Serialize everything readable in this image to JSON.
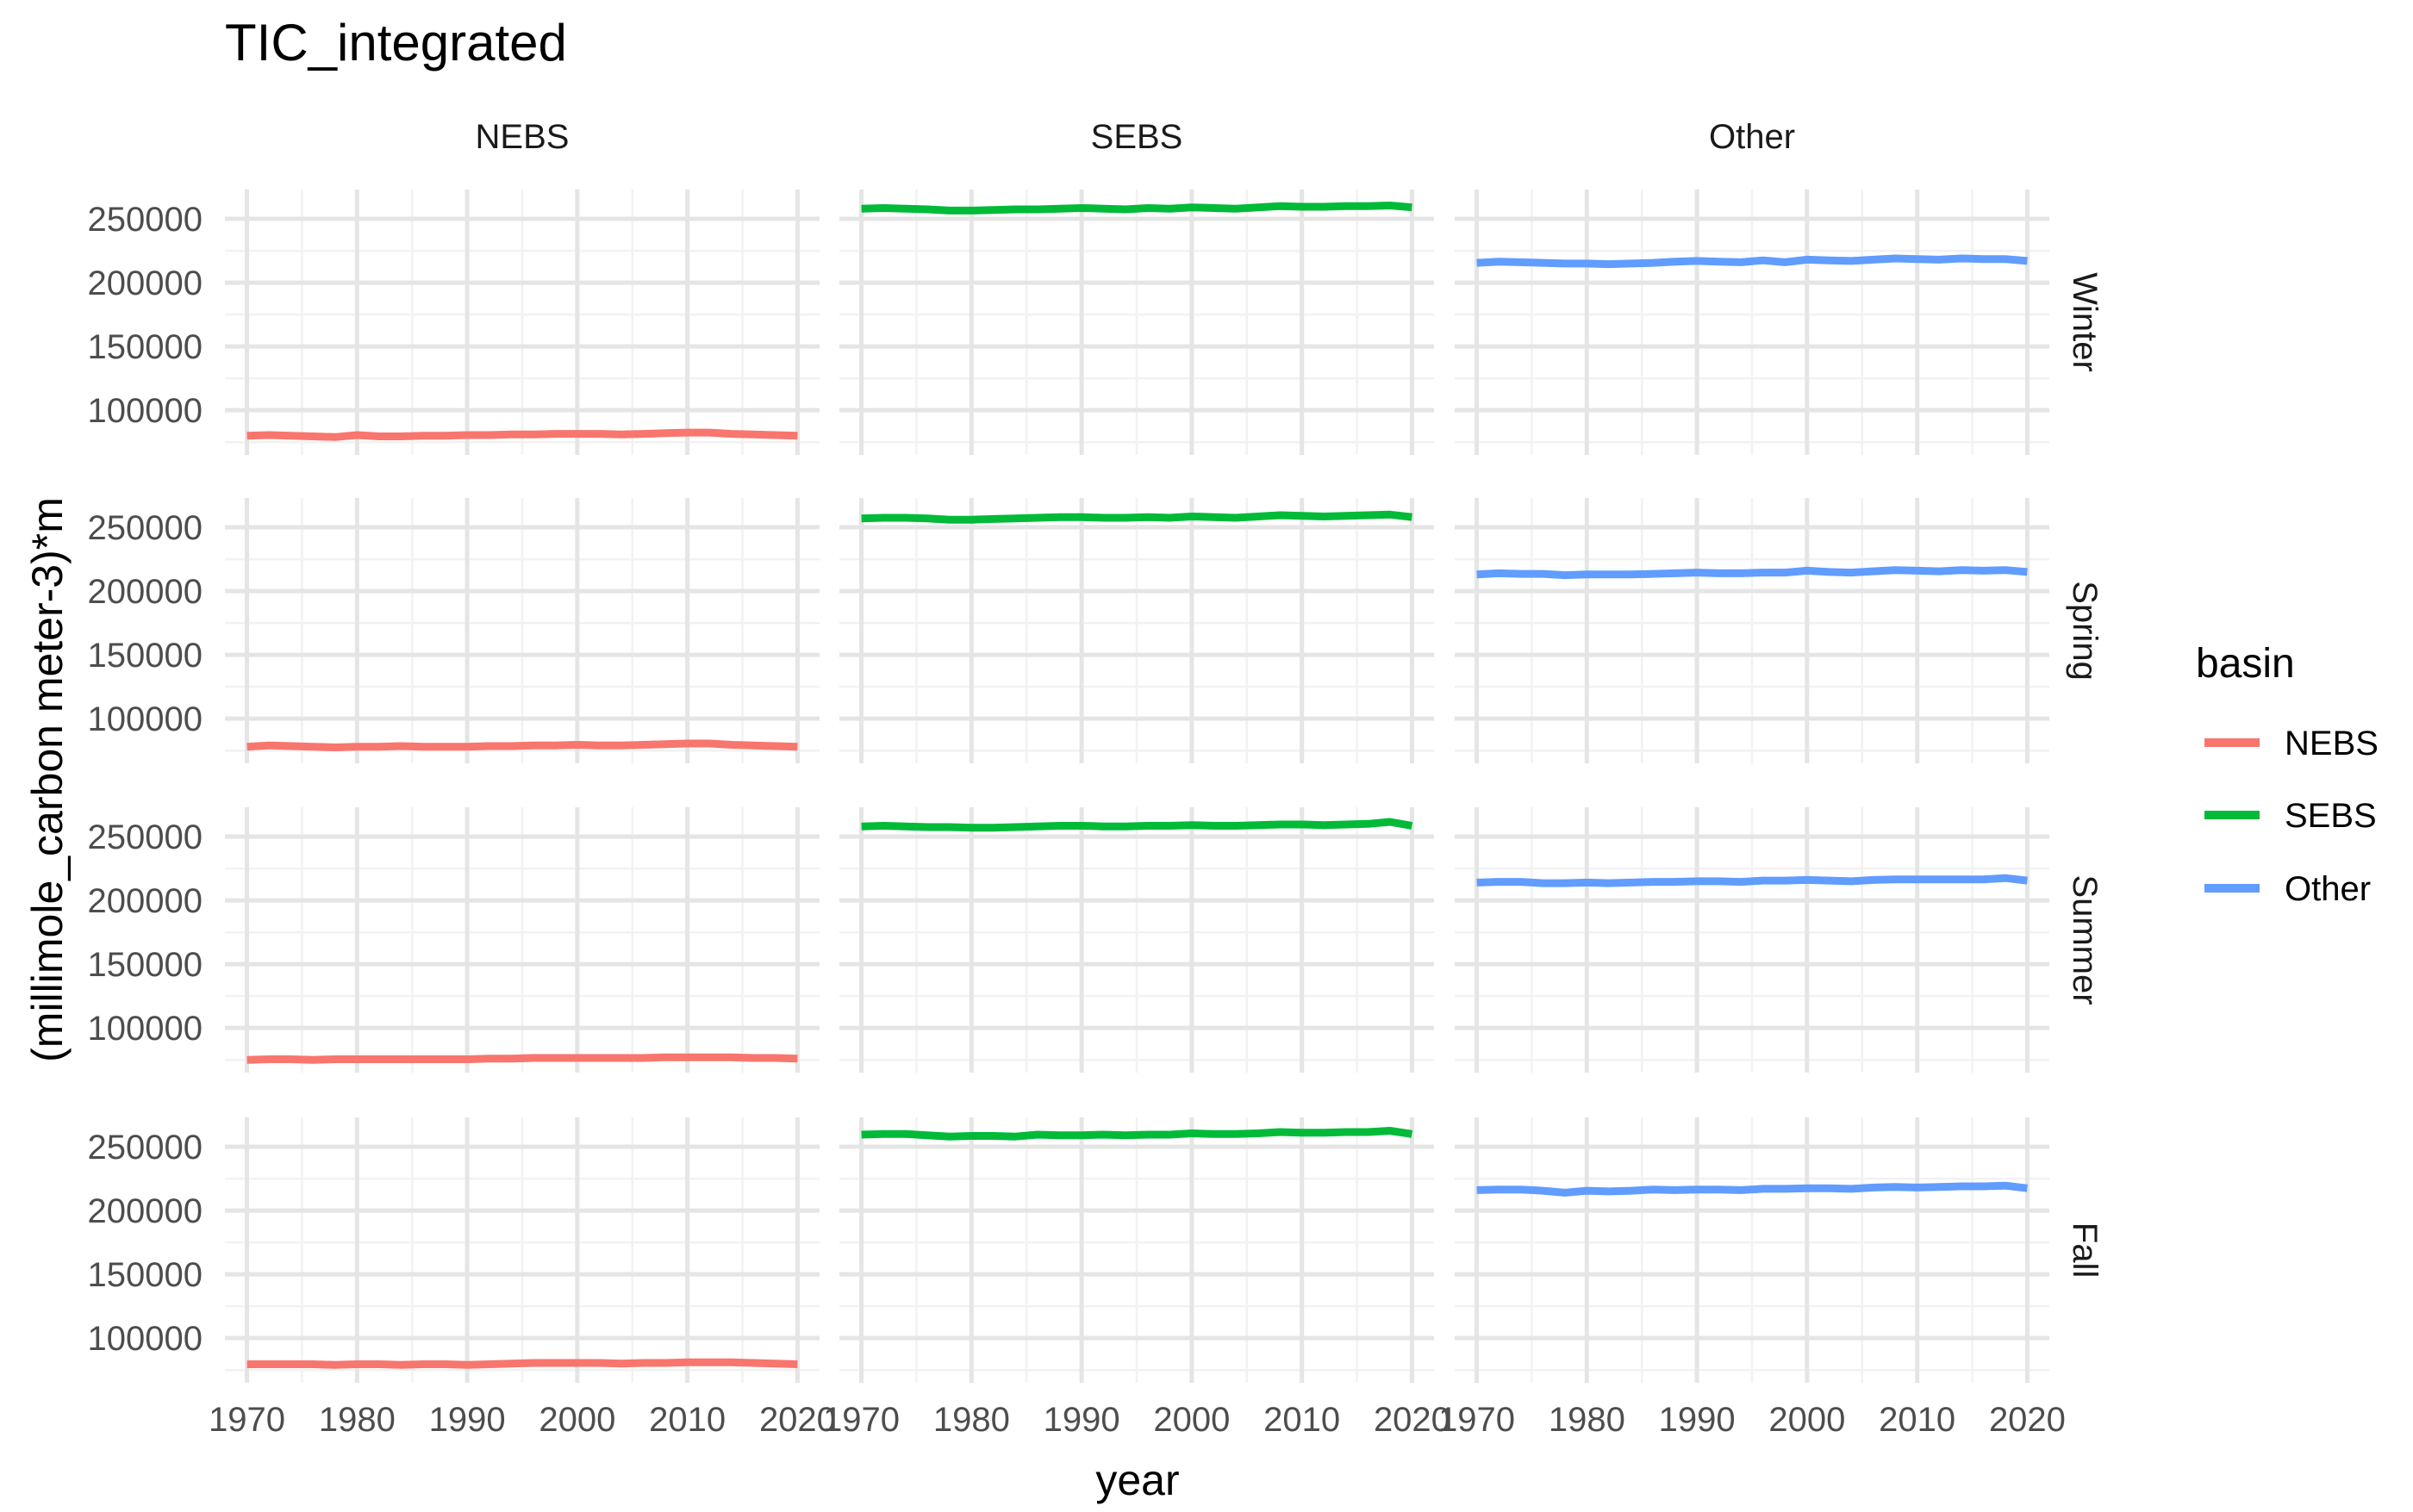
{
  "chart_data": {
    "type": "line",
    "title": "TIC_integrated",
    "xlabel": "year",
    "ylabel": "(millimole_carbon meter-3)*m",
    "columns": [
      "NEBS",
      "SEBS",
      "Other"
    ],
    "rows": [
      "Winter",
      "Spring",
      "Summer",
      "Fall"
    ],
    "xlim": [
      1968,
      2022
    ],
    "ylim": [
      65000,
      273000
    ],
    "x_ticks": [
      1970,
      1980,
      1990,
      2000,
      2010,
      2020
    ],
    "x_tick_labels": [
      "1970",
      "1980",
      "1990",
      "2000",
      "2010",
      "2020"
    ],
    "y_ticks": [
      100000,
      150000,
      200000,
      250000
    ],
    "y_tick_labels": [
      "100000",
      "150000",
      "200000",
      "250000"
    ],
    "grid": true,
    "legend": {
      "title": "basin",
      "placement": "right",
      "entries": [
        "NEBS",
        "SEBS",
        "Other"
      ]
    },
    "series_colors": {
      "NEBS": "#F8766D",
      "SEBS": "#00BA38",
      "Other": "#619CFF"
    },
    "years": [
      1970,
      1972,
      1974,
      1976,
      1978,
      1980,
      1982,
      1984,
      1986,
      1988,
      1990,
      1992,
      1994,
      1996,
      1998,
      2000,
      2002,
      2004,
      2006,
      2008,
      2010,
      2012,
      2014,
      2016,
      2018,
      2020
    ],
    "panels": [
      {
        "row": "Winter",
        "column": "NEBS",
        "values": [
          80000,
          80500,
          80000,
          79500,
          79000,
          80500,
          79500,
          79500,
          80000,
          80000,
          80500,
          80500,
          81000,
          81000,
          81500,
          81500,
          81500,
          81000,
          81500,
          82000,
          82500,
          82500,
          81500,
          81000,
          80500,
          80000
        ]
      },
      {
        "row": "Winter",
        "column": "SEBS",
        "values": [
          258000,
          258500,
          258000,
          257500,
          256500,
          256500,
          257000,
          257500,
          257500,
          258000,
          258500,
          258000,
          257500,
          258500,
          258000,
          259000,
          258500,
          258000,
          259000,
          260000,
          259500,
          259500,
          260000,
          260000,
          260500,
          259000
        ]
      },
      {
        "row": "Winter",
        "column": "Other",
        "values": [
          215500,
          216500,
          216000,
          215500,
          215000,
          215000,
          214500,
          215000,
          215500,
          216500,
          217000,
          216500,
          216000,
          217500,
          216000,
          218000,
          217500,
          217000,
          218000,
          219000,
          218500,
          218000,
          219000,
          218500,
          218500,
          217000
        ]
      },
      {
        "row": "Spring",
        "column": "NEBS",
        "values": [
          78000,
          79000,
          78500,
          78000,
          77500,
          78000,
          78000,
          78500,
          78000,
          78000,
          78000,
          78500,
          78500,
          79000,
          79000,
          79500,
          79000,
          79000,
          79500,
          80000,
          80500,
          80500,
          79500,
          79000,
          78500,
          78000
        ]
      },
      {
        "row": "Spring",
        "column": "SEBS",
        "values": [
          257000,
          257500,
          257500,
          257000,
          256000,
          256000,
          256500,
          257000,
          257500,
          258000,
          258000,
          257500,
          257500,
          258000,
          257500,
          258500,
          258000,
          257500,
          258500,
          259500,
          259000,
          258500,
          259000,
          259500,
          260000,
          258000
        ]
      },
      {
        "row": "Spring",
        "column": "Other",
        "values": [
          213000,
          214000,
          213500,
          213500,
          212500,
          213000,
          213000,
          213000,
          213500,
          214000,
          214500,
          214000,
          214000,
          214500,
          214500,
          216000,
          215000,
          214500,
          215500,
          216500,
          216000,
          215500,
          216500,
          216000,
          216500,
          215000
        ]
      },
      {
        "row": "Summer",
        "column": "NEBS",
        "values": [
          75000,
          75500,
          75500,
          75000,
          75500,
          75500,
          75500,
          75500,
          75500,
          75500,
          75500,
          76000,
          76000,
          76500,
          76500,
          76500,
          76500,
          76500,
          76500,
          77000,
          77000,
          77000,
          77000,
          76500,
          76500,
          76000
        ]
      },
      {
        "row": "Summer",
        "column": "SEBS",
        "values": [
          258000,
          258500,
          258000,
          257500,
          257500,
          257000,
          257000,
          257500,
          258000,
          258500,
          258500,
          258000,
          258000,
          258500,
          258500,
          259000,
          258500,
          258500,
          259000,
          259500,
          259500,
          259000,
          259500,
          260000,
          261500,
          258500
        ]
      },
      {
        "row": "Summer",
        "column": "Other",
        "values": [
          214000,
          214500,
          214500,
          213500,
          213500,
          214000,
          213500,
          214000,
          214500,
          214500,
          215000,
          215000,
          214500,
          215500,
          215500,
          216000,
          215500,
          215000,
          216000,
          216500,
          216500,
          216500,
          216500,
          216500,
          217500,
          215500
        ]
      },
      {
        "row": "Fall",
        "column": "NEBS",
        "values": [
          79500,
          79500,
          79500,
          79500,
          79000,
          79500,
          79500,
          79000,
          79500,
          79500,
          79000,
          79500,
          80000,
          80500,
          80500,
          80500,
          80500,
          80000,
          80500,
          80500,
          81000,
          81000,
          81000,
          80500,
          80000,
          79500
        ]
      },
      {
        "row": "Fall",
        "column": "SEBS",
        "values": [
          259500,
          260000,
          260000,
          259000,
          258000,
          258500,
          258500,
          258000,
          259500,
          259000,
          259000,
          259500,
          259000,
          259500,
          259500,
          260500,
          260000,
          260000,
          260500,
          261500,
          261000,
          261000,
          261500,
          261500,
          262500,
          260000
        ]
      },
      {
        "row": "Fall",
        "column": "Other",
        "values": [
          216000,
          216500,
          216500,
          215500,
          214000,
          215500,
          215000,
          215500,
          216500,
          216000,
          216500,
          216500,
          216000,
          217000,
          217000,
          217500,
          217500,
          217000,
          218000,
          218500,
          218000,
          218500,
          219000,
          219000,
          219500,
          217500
        ]
      }
    ]
  }
}
